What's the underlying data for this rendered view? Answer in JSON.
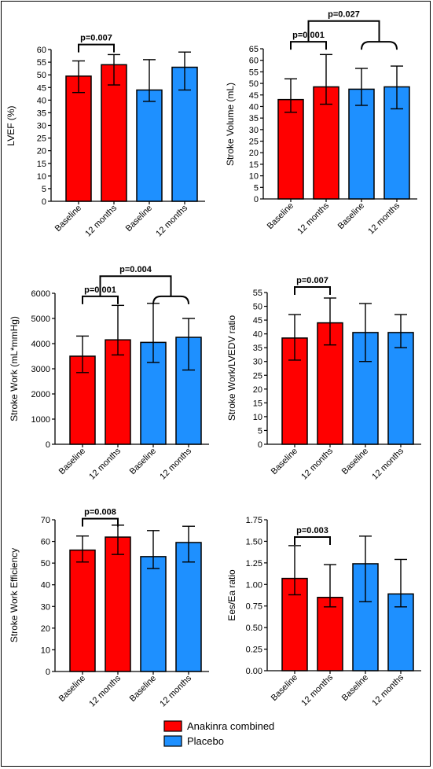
{
  "colors": {
    "anakinra": "#ff0000",
    "placebo": "#1e90ff",
    "axis": "#000000"
  },
  "legend": {
    "items": [
      {
        "label": "Anakinra combined",
        "color": "#ff0000"
      },
      {
        "label": "Placebo",
        "color": "#1e90ff"
      }
    ]
  },
  "chart_data": [
    {
      "type": "bar",
      "ylabel": "LVEF (%)",
      "categories": [
        "Baseline",
        "12 months",
        "Baseline",
        "12 months"
      ],
      "groups": [
        "anakinra",
        "anakinra",
        "placebo",
        "placebo"
      ],
      "values": [
        49.5,
        54,
        44,
        53
      ],
      "err_low": [
        43,
        46,
        39.5,
        44
      ],
      "err_high": [
        55.5,
        58,
        56,
        59
      ],
      "ylim": [
        0,
        60
      ],
      "yticks": [
        0,
        5,
        10,
        15,
        20,
        25,
        30,
        35,
        40,
        45,
        50,
        55,
        60
      ],
      "tick_labels": [
        "0",
        "5",
        "10",
        "15",
        "20",
        "25",
        "30",
        "35",
        "40",
        "45",
        "50",
        "55",
        "60"
      ],
      "brackets": [
        {
          "type": "simple",
          "from": 0,
          "to": 1,
          "level": 62,
          "label": "p=0.007"
        }
      ]
    },
    {
      "type": "bar",
      "ylabel": "Stroke Volume (mL)",
      "categories": [
        "Baseline",
        "12 months",
        "Baseline",
        "12 months"
      ],
      "groups": [
        "anakinra",
        "anakinra",
        "placebo",
        "placebo"
      ],
      "values": [
        43,
        48.5,
        47.5,
        48.5
      ],
      "err_low": [
        37.5,
        41,
        40.5,
        39
      ],
      "err_high": [
        52,
        62.5,
        56.5,
        57.5
      ],
      "ylim": [
        0,
        65
      ],
      "yticks": [
        0,
        5,
        10,
        15,
        20,
        25,
        30,
        35,
        40,
        45,
        50,
        55,
        60,
        65
      ],
      "tick_labels": [
        "0",
        "5",
        "10",
        "15",
        "20",
        "25",
        "30",
        "35",
        "40",
        "45",
        "50",
        "55",
        "60",
        "65"
      ],
      "brackets": [
        {
          "type": "simple",
          "from": 0,
          "to": 1,
          "level": 68,
          "label": "p=0.001"
        },
        {
          "type": "merge",
          "from": 2,
          "to": 3,
          "level": 68
        },
        {
          "type": "group",
          "from": 0.5,
          "to": 2.5,
          "low": 68,
          "level": 77,
          "label": "p=0.027"
        }
      ]
    },
    {
      "type": "bar",
      "ylabel": "Stroke Work (mL*mmHg)",
      "categories": [
        "Baseline",
        "12 months",
        "Baseline",
        "12 months"
      ],
      "groups": [
        "anakinra",
        "anakinra",
        "placebo",
        "placebo"
      ],
      "values": [
        3500,
        4150,
        4050,
        4250
      ],
      "err_low": [
        2850,
        3550,
        3250,
        2950
      ],
      "err_high": [
        4300,
        5520,
        5600,
        5000
      ],
      "ylim": [
        0,
        6000
      ],
      "yticks": [
        0,
        1000,
        2000,
        3000,
        4000,
        5000,
        6000
      ],
      "tick_labels": [
        "0",
        "1000",
        "2000",
        "3000",
        "4000",
        "5000",
        "6000"
      ],
      "brackets": [
        {
          "type": "simple",
          "from": 0,
          "to": 1,
          "level": 5880,
          "label": "p=0.001"
        },
        {
          "type": "merge",
          "from": 2,
          "to": 3,
          "level": 5880
        },
        {
          "type": "group",
          "from": 0.5,
          "to": 2.5,
          "low": 5880,
          "level": 6680,
          "label": "p=0.004"
        }
      ]
    },
    {
      "type": "bar",
      "ylabel": "Stroke Work/LVEDV ratio",
      "categories": [
        "Baseline",
        "12 months",
        "Baseline",
        "12 months"
      ],
      "groups": [
        "anakinra",
        "anakinra",
        "placebo",
        "placebo"
      ],
      "values": [
        38.5,
        44,
        40.5,
        40.5
      ],
      "err_low": [
        30.5,
        36,
        30,
        35
      ],
      "err_high": [
        47,
        53,
        51,
        47
      ],
      "ylim": [
        0,
        55
      ],
      "yticks": [
        0,
        5,
        10,
        15,
        20,
        25,
        30,
        35,
        40,
        45,
        50,
        55
      ],
      "tick_labels": [
        "0",
        "5",
        "10",
        "15",
        "20",
        "25",
        "30",
        "35",
        "40",
        "45",
        "50",
        "55"
      ],
      "brackets": [
        {
          "type": "simple",
          "from": 0,
          "to": 1,
          "level": 57,
          "label": "p=0.007"
        }
      ]
    },
    {
      "type": "bar",
      "ylabel": "Stroke Work Efficiency",
      "categories": [
        "Baseline",
        "12 months",
        "Baseline",
        "12 months"
      ],
      "groups": [
        "anakinra",
        "anakinra",
        "placebo",
        "placebo"
      ],
      "values": [
        56,
        62,
        53,
        59.5
      ],
      "err_low": [
        50.5,
        54,
        47.5,
        50.5
      ],
      "err_high": [
        62.5,
        67.5,
        65,
        67
      ],
      "ylim": [
        0,
        70
      ],
      "yticks": [
        0,
        10,
        20,
        30,
        40,
        50,
        60,
        70
      ],
      "tick_labels": [
        "0",
        "10",
        "20",
        "30",
        "40",
        "50",
        "60",
        "70"
      ],
      "brackets": [
        {
          "type": "simple",
          "from": 0,
          "to": 1,
          "level": 70.5,
          "label": "p=0.008"
        }
      ]
    },
    {
      "type": "bar",
      "ylabel": "Ees/Ea ratio",
      "categories": [
        "Baseline",
        "12 months",
        "Baseline",
        "12 months"
      ],
      "groups": [
        "anakinra",
        "anakinra",
        "placebo",
        "placebo"
      ],
      "values": [
        1.07,
        0.85,
        1.24,
        0.89
      ],
      "err_low": [
        0.88,
        0.74,
        0.8,
        0.74
      ],
      "err_high": [
        1.45,
        1.23,
        1.56,
        1.29
      ],
      "ylim": [
        0,
        1.75
      ],
      "yticks": [
        0,
        0.25,
        0.5,
        0.75,
        1.0,
        1.25,
        1.5,
        1.75
      ],
      "tick_labels": [
        "0.00",
        "0.25",
        "0.50",
        "0.75",
        "1.00",
        "1.25",
        "1.50",
        "1.75"
      ],
      "brackets": [
        {
          "type": "simple",
          "from": 0,
          "to": 1,
          "level": 1.55,
          "label": "p=0.003"
        }
      ]
    }
  ]
}
